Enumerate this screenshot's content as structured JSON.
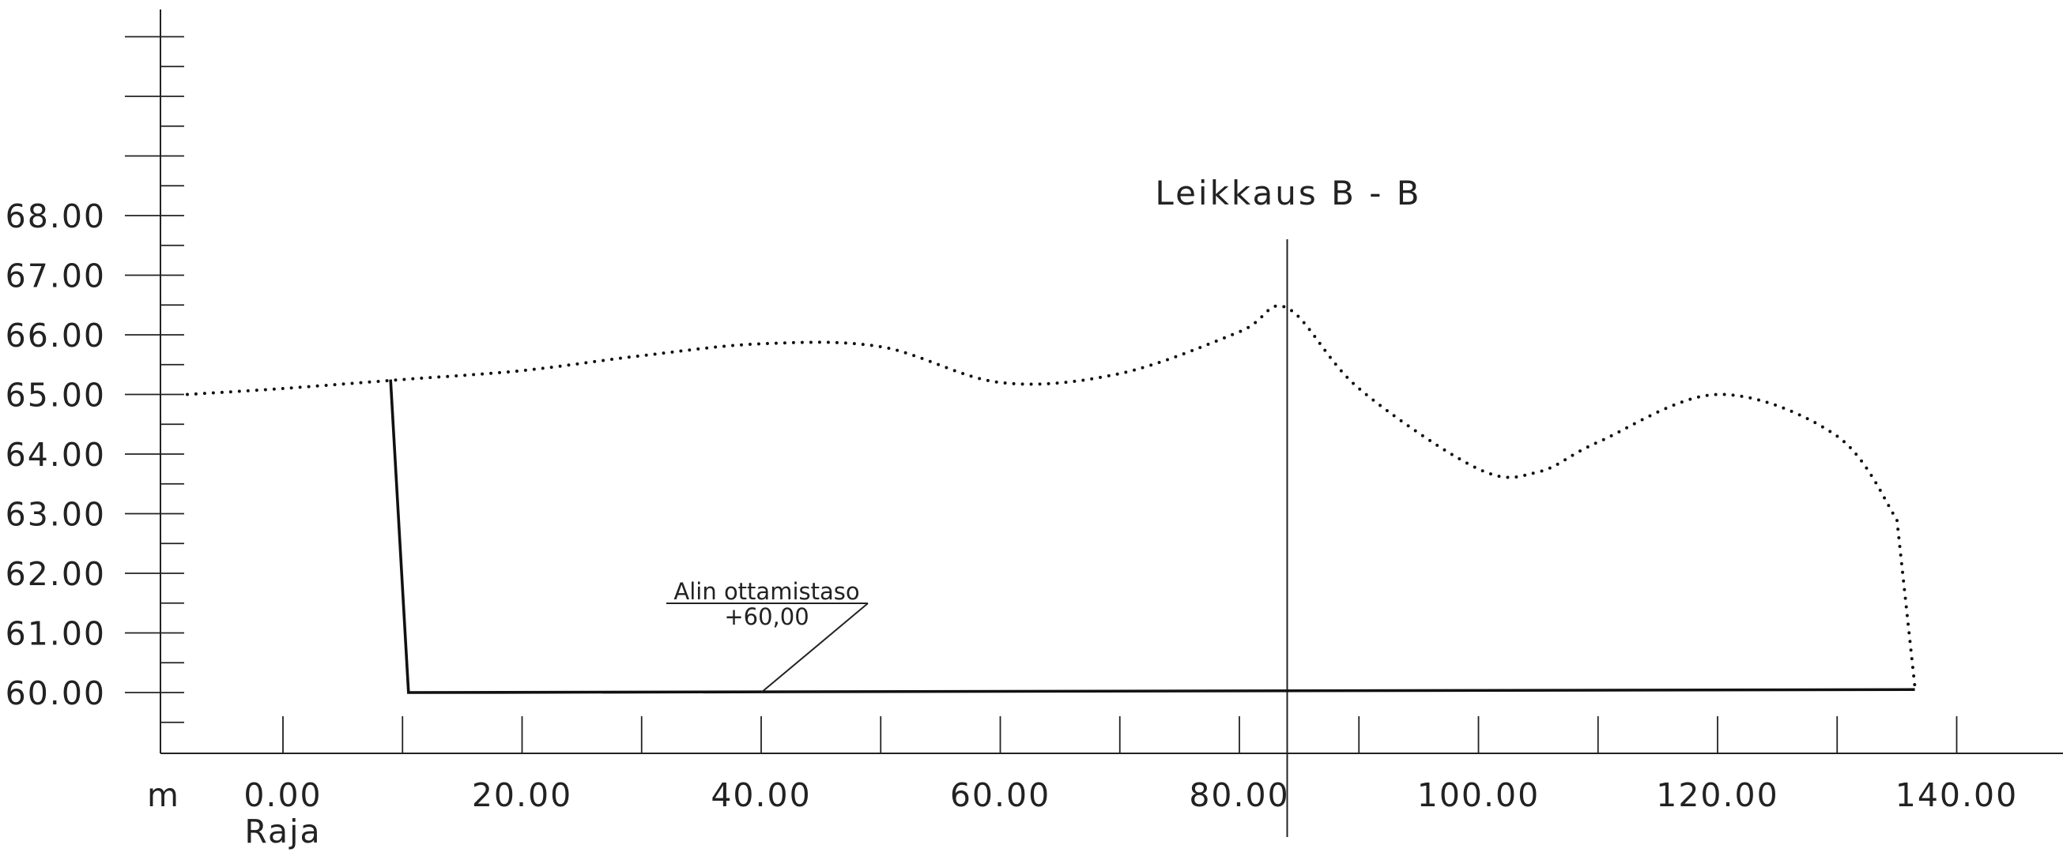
{
  "section_title": "Leikkaus B - B",
  "x_unit": "m",
  "boundary_label": "Raja",
  "y_axis": {
    "labels": [
      "60.00",
      "61.00",
      "62.00",
      "63.00",
      "64.00",
      "65.00",
      "66.00",
      "67.00",
      "68.00"
    ],
    "range": [
      59,
      72
    ]
  },
  "x_axis": {
    "labels": [
      "0.00",
      "20.00",
      "40.00",
      "60.00",
      "80.00",
      "100.00",
      "120.00",
      "140.00"
    ],
    "range": [
      -10,
      150
    ]
  },
  "annotation": {
    "line1": "Alin ottamistaso",
    "line2": "+60,00"
  },
  "chart_data": {
    "type": "line",
    "title": "Leikkaus B - B",
    "x_unit": "m",
    "series": [
      {
        "x": [
          -8,
          0,
          10,
          20,
          30,
          40,
          50,
          60,
          70,
          80,
          84,
          90,
          100,
          105,
          110,
          120,
          130,
          135,
          136.5
        ],
        "y": [
          65.0,
          65.1,
          65.25,
          65.4,
          65.65,
          65.85,
          65.8,
          65.2,
          65.35,
          66.05,
          66.45,
          65.1,
          63.75,
          63.7,
          64.2,
          65.0,
          64.3,
          62.9,
          60.1
        ]
      },
      {
        "x": [
          9,
          10.5,
          136.5
        ],
        "y": [
          65.25,
          60.0,
          60.05
        ]
      }
    ],
    "section_line_x": 84,
    "annotation_x": 40,
    "annotation_y": 60.0
  }
}
